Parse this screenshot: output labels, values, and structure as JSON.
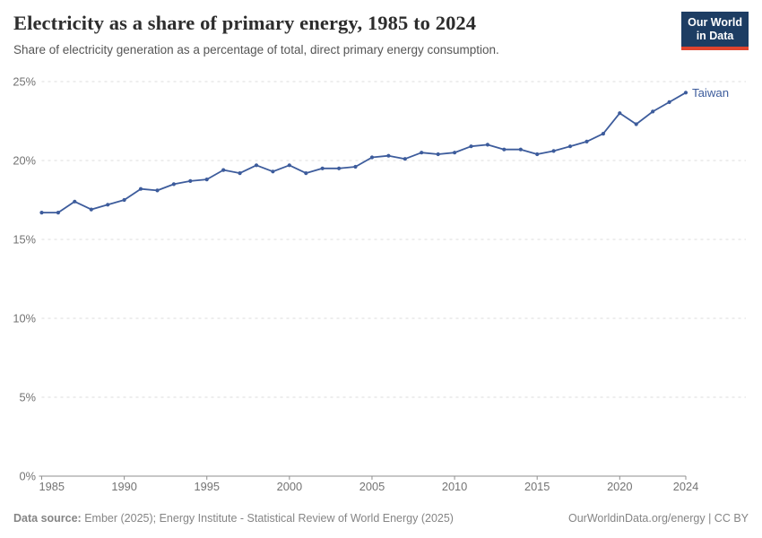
{
  "header": {
    "title": "Electricity as a share of primary energy, 1985 to 2024",
    "subtitle": "Share of electricity generation as a percentage of total, direct primary energy consumption.",
    "logo": {
      "line1": "Our World",
      "line2": "in Data"
    }
  },
  "footer": {
    "datasource_label": "Data source:",
    "datasource_text": " Ember (2025); Energy Institute - Statistical Review of World Energy (2025)",
    "rights": "OurWorldinData.org/energy | CC BY"
  },
  "colors": {
    "series_blue": "#3d5c9c",
    "gridline": "#dddddd",
    "axis_line": "#8f8f8f",
    "tick_text": "#737373",
    "logo_navy": "#1d3d63",
    "logo_red": "#e0442e"
  },
  "chart_data": {
    "type": "line",
    "title": "Electricity as a share of primary energy, 1985 to 2024",
    "subtitle": "Share of electricity generation as a percentage of total, direct primary energy consumption.",
    "xlabel": "",
    "ylabel": "",
    "xlim": [
      1985,
      2024
    ],
    "ylim": [
      0,
      25
    ],
    "grid": "horizontal-dashed",
    "legend_position": "end-of-line-label",
    "x_ticks": [
      1985,
      1990,
      1995,
      2000,
      2005,
      2010,
      2015,
      2020,
      2024
    ],
    "y_ticks": [
      {
        "value": 0,
        "label": "0%"
      },
      {
        "value": 5,
        "label": "5%"
      },
      {
        "value": 10,
        "label": "10%"
      },
      {
        "value": 15,
        "label": "15%"
      },
      {
        "value": 20,
        "label": "20%"
      },
      {
        "value": 25,
        "label": "25%"
      }
    ],
    "series": [
      {
        "name": "Taiwan",
        "color": "#3d5c9c",
        "x": [
          1985,
          1986,
          1987,
          1988,
          1989,
          1990,
          1991,
          1992,
          1993,
          1994,
          1995,
          1996,
          1997,
          1998,
          1999,
          2000,
          2001,
          2002,
          2003,
          2004,
          2005,
          2006,
          2007,
          2008,
          2009,
          2010,
          2011,
          2012,
          2013,
          2014,
          2015,
          2016,
          2017,
          2018,
          2019,
          2020,
          2021,
          2022,
          2023,
          2024
        ],
        "values": [
          16.7,
          16.7,
          17.4,
          16.9,
          17.2,
          17.5,
          18.2,
          18.1,
          18.5,
          18.7,
          18.8,
          19.4,
          19.2,
          19.7,
          19.3,
          19.7,
          19.2,
          19.5,
          19.5,
          19.6,
          20.2,
          20.3,
          20.1,
          20.5,
          20.4,
          20.5,
          20.9,
          21.0,
          20.7,
          20.7,
          20.4,
          20.6,
          20.9,
          21.2,
          21.7,
          23.0,
          22.3,
          23.1,
          23.7,
          24.3
        ]
      }
    ]
  }
}
